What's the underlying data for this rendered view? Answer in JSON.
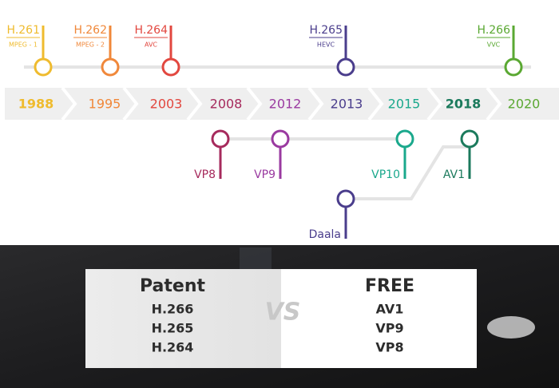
{
  "timeline": {
    "years": [
      "1988",
      "1995",
      "2003",
      "2008",
      "2012",
      "2013",
      "2015",
      "2018",
      "2020"
    ]
  },
  "top_codecs": [
    {
      "name": "H.261",
      "sub": "MPEG - 1"
    },
    {
      "name": "H.262",
      "sub": "MPEG - 2"
    },
    {
      "name": "H.264",
      "sub": "AVC"
    },
    {
      "name": "H.265",
      "sub": "HEVC"
    },
    {
      "name": "H.266",
      "sub": "VVC"
    }
  ],
  "bottom_codecs": [
    {
      "name": "VP8"
    },
    {
      "name": "VP9"
    },
    {
      "name": "VP10"
    },
    {
      "name": "AV1"
    },
    {
      "name": "Daala"
    }
  ],
  "comparison": {
    "left": {
      "title": "Patent",
      "items": [
        "H.266",
        "H.265",
        "H.264"
      ]
    },
    "vs": "VS",
    "right": {
      "title": "FREE",
      "items": [
        "AV1",
        "VP9",
        "VP8"
      ]
    }
  }
}
